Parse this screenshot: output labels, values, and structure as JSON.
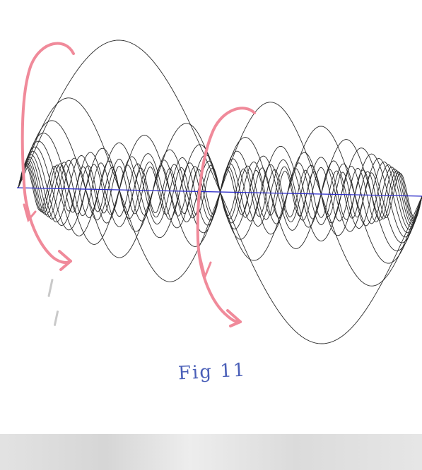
{
  "caption": "Fig 11",
  "colors": {
    "curves": "#2a2a2a",
    "axis": "#2b2bc8",
    "arrows": "#f08a9a",
    "caption": "#4a5fb8"
  },
  "diagram": {
    "description_elements": [
      "standing-wave-curves",
      "horizontal-axis",
      "hand-drawn-arrows"
    ],
    "harmonics": [
      1,
      2,
      3,
      4,
      5,
      6,
      7,
      8,
      9,
      10,
      11,
      12,
      13,
      14
    ]
  }
}
